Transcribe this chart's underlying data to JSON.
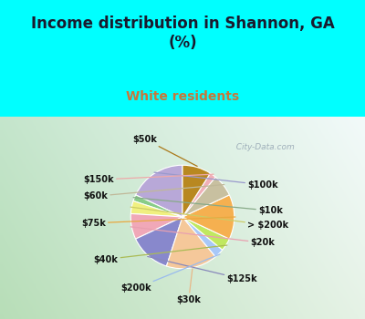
{
  "title": "Income distribution in Shannon, GA\n(%)",
  "subtitle": "White residents",
  "title_color": "#1a1a2e",
  "subtitle_color": "#c8763a",
  "bg_color": "#00ffff",
  "chart_bg_color_left": "#b8ddb8",
  "chart_bg_color_right": "#e8f0f0",
  "labels": [
    "$100k",
    "$10k",
    "> $200k",
    "$20k",
    "$125k",
    "$30k",
    "$200k",
    "$40k",
    "$75k",
    "$60k",
    "$150k",
    "$50k"
  ],
  "values": [
    18,
    2,
    4,
    8,
    13,
    16,
    3,
    4,
    14,
    7,
    2,
    9
  ],
  "colors": [
    "#b8a8d8",
    "#88cc88",
    "#f0f080",
    "#f0a8b8",
    "#8888cc",
    "#f5c89a",
    "#a8c8f8",
    "#c0e860",
    "#f5b050",
    "#c8c0a0",
    "#f0b0b8",
    "#b88820"
  ],
  "start_angle": 90,
  "figsize": [
    4.0,
    3.5
  ],
  "dpi": 100
}
